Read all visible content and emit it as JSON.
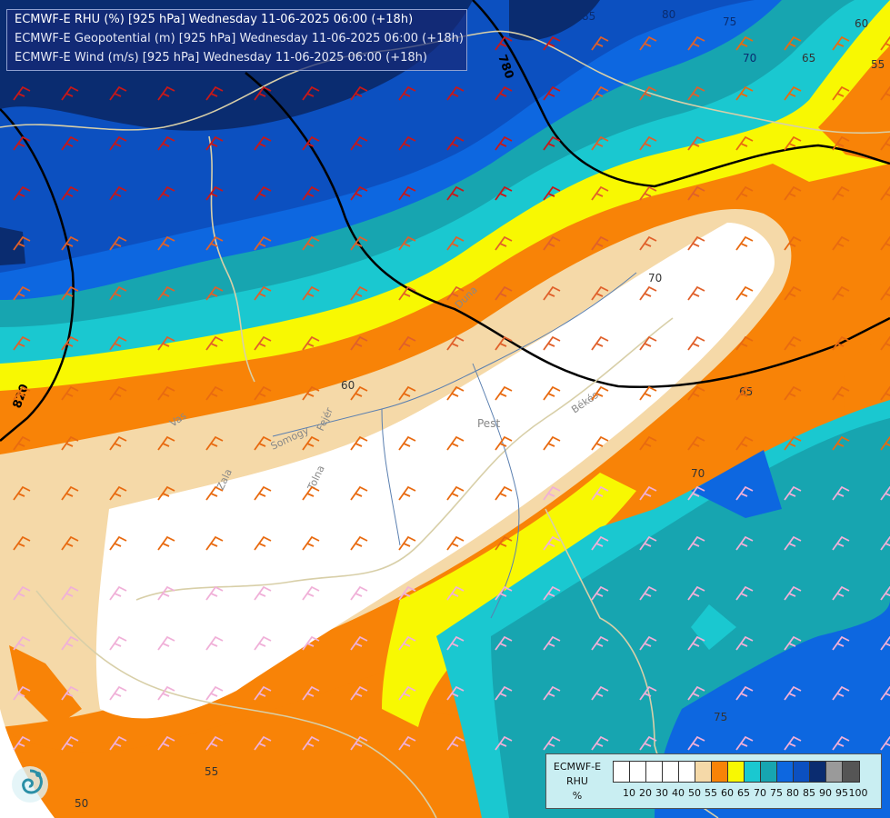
{
  "title_lines": [
    "ECMWF-E RHU (%) [925 hPa] Wednesday 11-06-2025 06:00 (+18h)",
    "ECMWF-E Geopotential (m) [925 hPa] Wednesday 11-06-2025 06:00 (+18h)",
    "ECMWF-E Wind (m/s) [925 hPa] Wednesday 11-06-2025 06:00 (+18h)"
  ],
  "legend": {
    "caption": [
      "ECMWF-E",
      "RHU",
      "%"
    ],
    "colors": [
      "#ffffff",
      "#ffffff",
      "#ffffff",
      "#ffffff",
      "#ffffff",
      "#f5d9a8",
      "#f88307",
      "#f8f802",
      "#1ac8d0",
      "#17a5b0",
      "#0d67e0",
      "#0c50c0",
      "#0a2c70",
      "#9a9a9a",
      "#555555"
    ],
    "labels": [
      "10",
      "20",
      "30",
      "40",
      "50",
      "55",
      "60",
      "65",
      "70",
      "75",
      "80",
      "85",
      "90",
      "95",
      "100"
    ]
  },
  "map": {
    "contour_labels_rhu": [
      "85",
      "80",
      "75",
      "70",
      "65",
      "60",
      "55",
      "60",
      "65",
      "70",
      "55",
      "50",
      "70",
      "75"
    ],
    "contour_labels_geopotential": [
      "780",
      "820"
    ],
    "place_labels": [
      "Pest",
      "Békés",
      "Zala",
      "Somogy",
      "Tolna",
      "Fejér",
      "Vas",
      "Duna"
    ],
    "colors": {
      "rhu_90": "#0a2c70",
      "rhu_85": "#0c50c0",
      "rhu_80": "#0d67e0",
      "rhu_75": "#17a5b0",
      "rhu_70": "#1ac8d0",
      "rhu_65": "#f8f802",
      "rhu_60": "#f88307",
      "rhu_55": "#f5d9a8",
      "rhu_50": "#ffffff",
      "geopotential_line": "#000000",
      "border_line": "#d8cfa8",
      "river_line": "#5a7fb0"
    }
  }
}
